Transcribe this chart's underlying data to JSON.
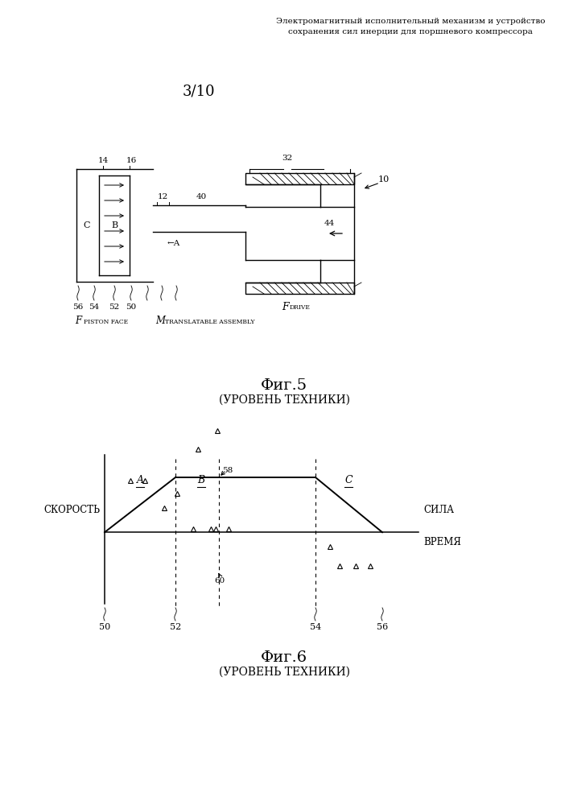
{
  "title_text": "Электромагнитный исполнительный механизм и устройство\nсохранения сил инерции для поршневого компрессора",
  "page_number": "3/10",
  "fig5_title": "Фиг.5",
  "fig5_subtitle": "(УРОВЕНЬ ТЕХНИКИ)",
  "fig6_title": "Фиг.6",
  "fig6_subtitle": "(УРОВЕНЬ ТЕХНИКИ)",
  "bg_color": "#ffffff",
  "line_color": "#000000"
}
